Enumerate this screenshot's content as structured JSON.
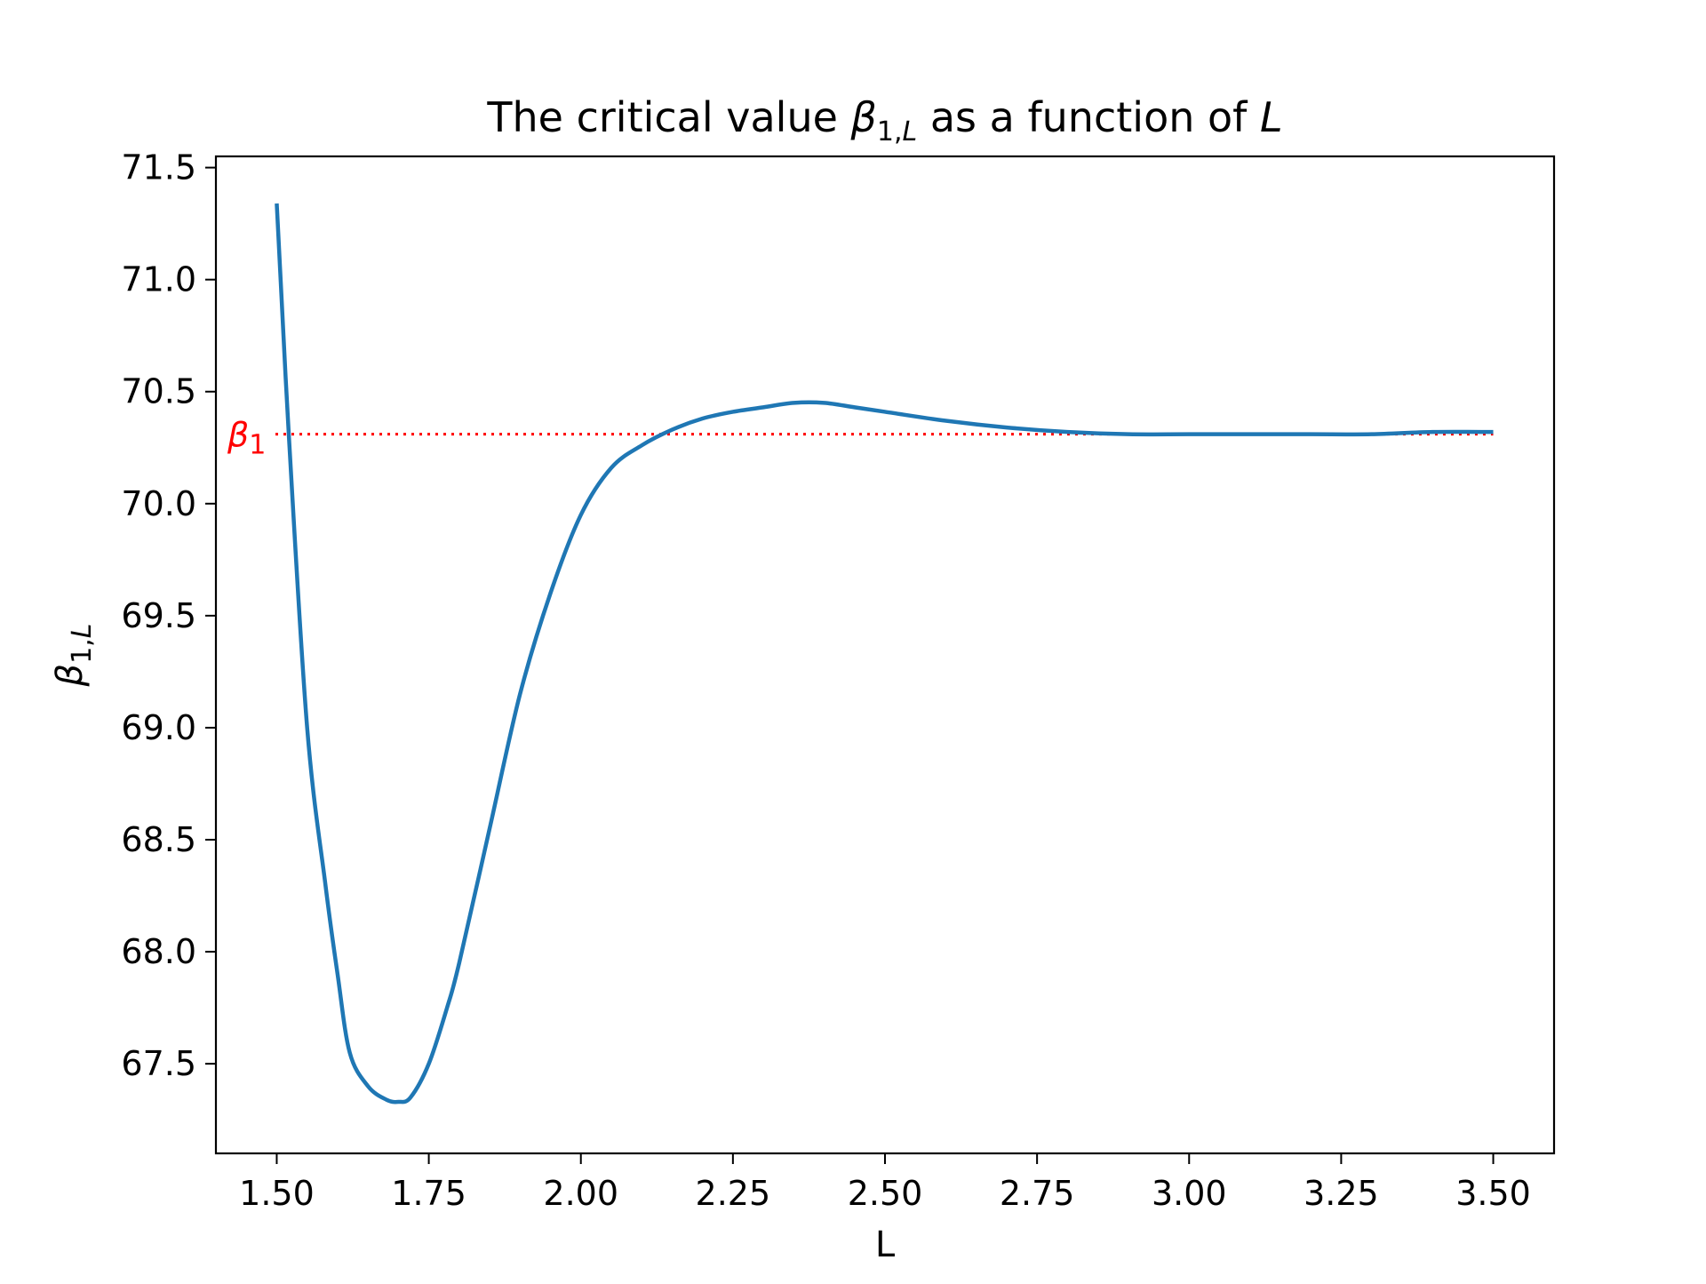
{
  "chart_data": {
    "type": "line",
    "title": {
      "prefix": "The critical value ",
      "symbol": "β",
      "subscript": "1,",
      "subscript_italic": "L",
      "middle": " as a function of ",
      "suffix_italic": "L"
    },
    "xlabel": "L",
    "ylabel": {
      "symbol": "β",
      "subscript": "1,",
      "subscript_italic": "L"
    },
    "xlim": [
      1.4,
      3.6
    ],
    "ylim": [
      67.1,
      71.55
    ],
    "xticks": [
      1.5,
      1.75,
      2.0,
      2.25,
      2.5,
      2.75,
      3.0,
      3.25,
      3.5
    ],
    "xtick_labels": [
      "1.50",
      "1.75",
      "2.00",
      "2.25",
      "2.50",
      "2.75",
      "3.00",
      "3.25",
      "3.50"
    ],
    "yticks": [
      67.5,
      68.0,
      68.5,
      69.0,
      69.5,
      70.0,
      70.5,
      71.0,
      71.5
    ],
    "ytick_labels": [
      "67.5",
      "68.0",
      "68.5",
      "69.0",
      "69.5",
      "70.0",
      "70.5",
      "71.0",
      "71.5"
    ],
    "grid": false,
    "series": [
      {
        "color": "#1f77b4",
        "x": [
          1.5,
          1.52,
          1.55,
          1.58,
          1.6,
          1.62,
          1.65,
          1.68,
          1.7,
          1.72,
          1.75,
          1.78,
          1.8,
          1.85,
          1.9,
          1.95,
          2.0,
          2.05,
          2.1,
          2.15,
          2.2,
          2.25,
          2.3,
          2.35,
          2.4,
          2.45,
          2.5,
          2.6,
          2.7,
          2.8,
          2.9,
          3.0,
          3.1,
          3.2,
          3.3,
          3.4,
          3.5
        ],
        "y": [
          71.34,
          70.3,
          69.0,
          68.3,
          67.9,
          67.55,
          67.4,
          67.34,
          67.33,
          67.35,
          67.5,
          67.75,
          67.95,
          68.55,
          69.15,
          69.6,
          69.95,
          70.16,
          70.26,
          70.33,
          70.38,
          70.41,
          70.43,
          70.45,
          70.45,
          70.43,
          70.41,
          70.37,
          70.34,
          70.32,
          70.31,
          70.31,
          70.31,
          70.31,
          70.31,
          70.32,
          70.32
        ]
      }
    ],
    "reference_line": {
      "y": 70.31,
      "color": "#ff0000",
      "label_symbol": "β",
      "label_subscript": "1"
    }
  }
}
